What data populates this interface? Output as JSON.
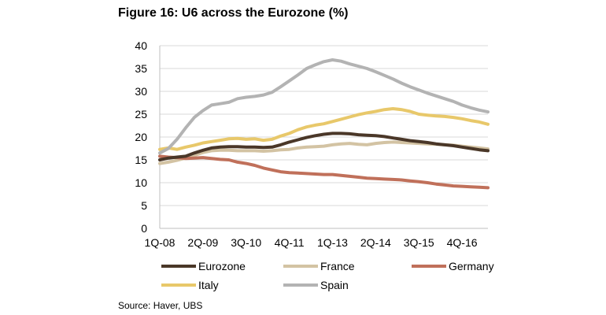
{
  "figure": {
    "title": "Figure 16: U6 across the Eurozone (%)",
    "source": "Source:  Haver, UBS"
  },
  "chart_data": {
    "type": "line",
    "title": "Figure 16: U6 across the Eurozone (%)",
    "xlabel": "",
    "ylabel": "",
    "ylim": [
      0,
      40
    ],
    "yticks": [
      0,
      5,
      10,
      15,
      20,
      25,
      30,
      35,
      40
    ],
    "grid": true,
    "legend_placement": "bottom",
    "x": [
      "1Q-08",
      "2Q-08",
      "3Q-08",
      "4Q-08",
      "1Q-09",
      "2Q-09",
      "3Q-09",
      "4Q-09",
      "1Q-10",
      "2Q-10",
      "3Q-10",
      "4Q-10",
      "1Q-11",
      "2Q-11",
      "3Q-11",
      "4Q-11",
      "1Q-12",
      "2Q-12",
      "3Q-12",
      "4Q-12",
      "1Q-13",
      "2Q-13",
      "3Q-13",
      "4Q-13",
      "1Q-14",
      "2Q-14",
      "3Q-14",
      "4Q-14",
      "1Q-15",
      "2Q-15",
      "3Q-15",
      "4Q-15",
      "1Q-16",
      "2Q-16",
      "3Q-16",
      "4Q-16",
      "1Q-17",
      "2Q-17",
      "3Q-17"
    ],
    "xtick_labels": [
      "1Q-08",
      "2Q-09",
      "3Q-10",
      "4Q-11",
      "1Q-13",
      "2Q-14",
      "3Q-15",
      "4Q-16"
    ],
    "series": [
      {
        "name": "Eurozone",
        "color": "#4a3728",
        "values": [
          15,
          15.4,
          15.6,
          15.8,
          16.5,
          17.1,
          17.6,
          17.8,
          17.9,
          17.9,
          17.8,
          17.8,
          17.7,
          17.8,
          18.3,
          18.9,
          19.4,
          19.9,
          20.3,
          20.6,
          20.8,
          20.8,
          20.7,
          20.5,
          20.4,
          20.3,
          20.1,
          19.8,
          19.5,
          19.2,
          19.0,
          18.8,
          18.5,
          18.3,
          18.1,
          17.8,
          17.5,
          17.2,
          17.0
        ]
      },
      {
        "name": "France",
        "color": "#d3c3a3",
        "values": [
          14.2,
          14.5,
          14.9,
          15.4,
          16.0,
          16.6,
          17.0,
          17.1,
          17.1,
          17.0,
          17.0,
          17.0,
          16.9,
          17.0,
          17.2,
          17.3,
          17.6,
          17.8,
          17.9,
          18.0,
          18.3,
          18.5,
          18.6,
          18.4,
          18.3,
          18.6,
          18.8,
          18.9,
          18.8,
          18.7,
          18.6,
          18.5,
          18.4,
          18.3,
          18.2,
          18.0,
          17.8,
          17.6,
          17.4
        ]
      },
      {
        "name": "Germany",
        "color": "#c0705a",
        "values": [
          15.8,
          15.6,
          15.5,
          15.3,
          15.4,
          15.5,
          15.3,
          15.1,
          15.0,
          14.5,
          14.2,
          13.8,
          13.2,
          12.8,
          12.4,
          12.2,
          12.1,
          12.0,
          11.9,
          11.8,
          11.8,
          11.6,
          11.4,
          11.2,
          11.0,
          10.9,
          10.8,
          10.7,
          10.6,
          10.4,
          10.2,
          10.0,
          9.7,
          9.5,
          9.3,
          9.2,
          9.1,
          9.0,
          8.9
        ]
      },
      {
        "name": "Italy",
        "color": "#e8c86a",
        "values": [
          17.3,
          17.6,
          17.3,
          17.8,
          18.2,
          18.7,
          19.0,
          19.3,
          19.6,
          19.7,
          19.5,
          19.6,
          19.3,
          19.5,
          20.2,
          20.8,
          21.6,
          22.2,
          22.6,
          22.9,
          23.4,
          23.9,
          24.4,
          24.9,
          25.3,
          25.6,
          26.0,
          26.2,
          26.0,
          25.6,
          25.0,
          24.8,
          24.6,
          24.5,
          24.3,
          24.0,
          23.6,
          23.3,
          22.8
        ]
      },
      {
        "name": "Spain",
        "color": "#b3b3b3",
        "values": [
          16.5,
          17.5,
          19.5,
          22.0,
          24.3,
          25.8,
          27.0,
          27.3,
          27.6,
          28.4,
          28.7,
          28.9,
          29.2,
          29.8,
          31.0,
          32.3,
          33.6,
          35.0,
          35.8,
          36.5,
          36.9,
          36.6,
          36.0,
          35.5,
          35.0,
          34.3,
          33.5,
          32.7,
          31.8,
          31.0,
          30.3,
          29.6,
          29.0,
          28.4,
          27.8,
          27.0,
          26.4,
          25.9,
          25.5
        ]
      }
    ]
  }
}
